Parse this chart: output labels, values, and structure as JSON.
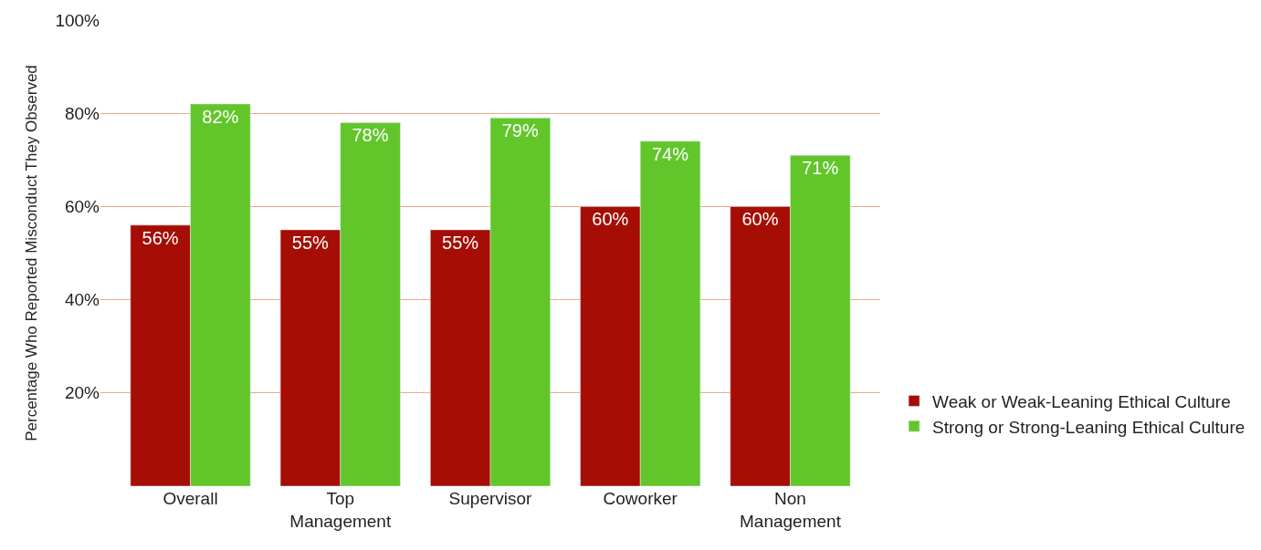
{
  "chart_data": {
    "type": "bar",
    "ylabel": "Percentage Who Reported Misconduct They Observed",
    "categories": [
      "Overall",
      "Top\nManagement",
      "Supervisor",
      "Coworker",
      "Non\nManagement"
    ],
    "series": [
      {
        "name": "Weak or Weak-Leaning Ethical Culture",
        "color": "#a50d05",
        "values": [
          56,
          55,
          55,
          60,
          60
        ],
        "value_labels": [
          "56%",
          "55%",
          "55%",
          "60%",
          "60%"
        ]
      },
      {
        "name": "Strong or Strong-Leaning Ethical Culture",
        "color": "#62c62b",
        "values": [
          82,
          78,
          79,
          74,
          71
        ],
        "value_labels": [
          "82%",
          "78%",
          "79%",
          "74%",
          "71%"
        ]
      }
    ],
    "ylim": [
      0,
      100
    ],
    "yticks": [
      {
        "value": 20,
        "label": "20%"
      },
      {
        "value": 40,
        "label": "40%"
      },
      {
        "value": 60,
        "label": "60%"
      },
      {
        "value": 80,
        "label": "80%"
      },
      {
        "value": 100,
        "label": "100%"
      }
    ],
    "grid": "y",
    "legend": "right"
  }
}
